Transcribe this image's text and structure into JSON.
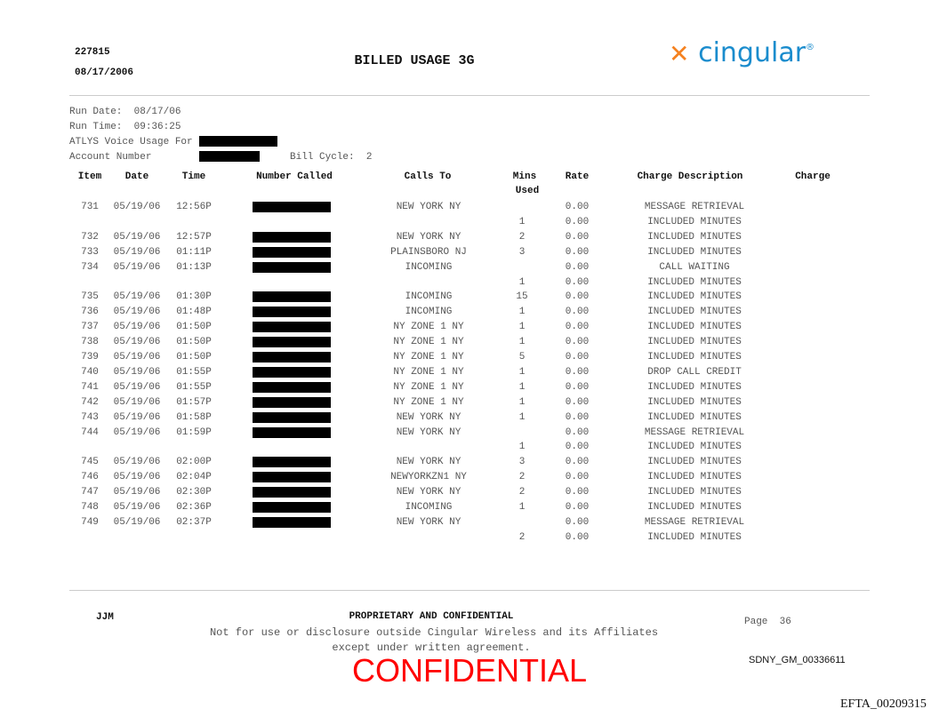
{
  "header": {
    "doc_id": "227815",
    "doc_date": "08/17/2006",
    "title": "BILLED USAGE 3G",
    "logo_text": "cingular",
    "logo_mark": "®",
    "brand_colors": {
      "blue": "#1a8ccd",
      "orange": "#f58220"
    }
  },
  "info": {
    "run_date_label": "Run Date:",
    "run_date": "08/17/06",
    "run_time_label": "Run Time:",
    "run_time": "09:36:25",
    "usage_for_label": "ATLYS Voice Usage For",
    "account_label": "Account Number",
    "bill_cycle_label": "Bill Cycle:",
    "bill_cycle": "2"
  },
  "table": {
    "columns": {
      "item": "Item",
      "date": "Date",
      "time": "Time",
      "number": "Number Called",
      "calls_to": "Calls To",
      "mins1": "Mins",
      "mins2": "Used",
      "rate": "Rate",
      "desc": "Charge Description",
      "charge": "Charge"
    },
    "rows": [
      {
        "item": "731",
        "date": "05/19/06",
        "time": "12:56P",
        "redacted": true,
        "calls_to": "NEW YORK NY",
        "mins": "",
        "rate": "0.00",
        "desc": "MESSAGE RETRIEVAL"
      },
      {
        "item": "",
        "date": "",
        "time": "",
        "redacted": false,
        "calls_to": "",
        "mins": "1",
        "rate": "0.00",
        "desc": "INCLUDED MINUTES"
      },
      {
        "item": "732",
        "date": "05/19/06",
        "time": "12:57P",
        "redacted": true,
        "calls_to": "NEW YORK NY",
        "mins": "2",
        "rate": "0.00",
        "desc": "INCLUDED MINUTES"
      },
      {
        "item": "733",
        "date": "05/19/06",
        "time": "01:11P",
        "redacted": true,
        "calls_to": "PLAINSBORO NJ",
        "mins": "3",
        "rate": "0.00",
        "desc": "INCLUDED MINUTES"
      },
      {
        "item": "734",
        "date": "05/19/06",
        "time": "01:13P",
        "redacted": true,
        "calls_to": "INCOMING",
        "mins": "",
        "rate": "0.00",
        "desc": "CALL WAITING"
      },
      {
        "item": "",
        "date": "",
        "time": "",
        "redacted": false,
        "calls_to": "",
        "mins": "1",
        "rate": "0.00",
        "desc": "INCLUDED MINUTES"
      },
      {
        "item": "735",
        "date": "05/19/06",
        "time": "01:30P",
        "redacted": true,
        "calls_to": "INCOMING",
        "mins": "15",
        "rate": "0.00",
        "desc": "INCLUDED MINUTES"
      },
      {
        "item": "736",
        "date": "05/19/06",
        "time": "01:48P",
        "redacted": true,
        "calls_to": "INCOMING",
        "mins": "1",
        "rate": "0.00",
        "desc": "INCLUDED MINUTES"
      },
      {
        "item": "737",
        "date": "05/19/06",
        "time": "01:50P",
        "redacted": true,
        "calls_to": "NY ZONE 1 NY",
        "mins": "1",
        "rate": "0.00",
        "desc": "INCLUDED MINUTES"
      },
      {
        "item": "738",
        "date": "05/19/06",
        "time": "01:50P",
        "redacted": true,
        "calls_to": "NY ZONE 1 NY",
        "mins": "1",
        "rate": "0.00",
        "desc": "INCLUDED MINUTES"
      },
      {
        "item": "739",
        "date": "05/19/06",
        "time": "01:50P",
        "redacted": true,
        "calls_to": "NY ZONE 1 NY",
        "mins": "5",
        "rate": "0.00",
        "desc": "INCLUDED MINUTES"
      },
      {
        "item": "740",
        "date": "05/19/06",
        "time": "01:55P",
        "redacted": true,
        "calls_to": "NY ZONE 1 NY",
        "mins": "1",
        "rate": "0.00",
        "desc": "DROP CALL CREDIT"
      },
      {
        "item": "741",
        "date": "05/19/06",
        "time": "01:55P",
        "redacted": true,
        "calls_to": "NY ZONE 1 NY",
        "mins": "1",
        "rate": "0.00",
        "desc": "INCLUDED MINUTES"
      },
      {
        "item": "742",
        "date": "05/19/06",
        "time": "01:57P",
        "redacted": true,
        "calls_to": "NY ZONE 1 NY",
        "mins": "1",
        "rate": "0.00",
        "desc": "INCLUDED MINUTES"
      },
      {
        "item": "743",
        "date": "05/19/06",
        "time": "01:58P",
        "redacted": true,
        "calls_to": "NEW YORK NY",
        "mins": "1",
        "rate": "0.00",
        "desc": "INCLUDED MINUTES"
      },
      {
        "item": "744",
        "date": "05/19/06",
        "time": "01:59P",
        "redacted": true,
        "calls_to": "NEW YORK NY",
        "mins": "",
        "rate": "0.00",
        "desc": "MESSAGE RETRIEVAL"
      },
      {
        "item": "",
        "date": "",
        "time": "",
        "redacted": false,
        "calls_to": "",
        "mins": "1",
        "rate": "0.00",
        "desc": "INCLUDED MINUTES"
      },
      {
        "item": "745",
        "date": "05/19/06",
        "time": "02:00P",
        "redacted": true,
        "calls_to": "NEW YORK NY",
        "mins": "3",
        "rate": "0.00",
        "desc": "INCLUDED MINUTES"
      },
      {
        "item": "746",
        "date": "05/19/06",
        "time": "02:04P",
        "redacted": true,
        "calls_to": "NEWYORKZN1 NY",
        "mins": "2",
        "rate": "0.00",
        "desc": "INCLUDED MINUTES"
      },
      {
        "item": "747",
        "date": "05/19/06",
        "time": "02:30P",
        "redacted": true,
        "calls_to": "NEW YORK NY",
        "mins": "2",
        "rate": "0.00",
        "desc": "INCLUDED MINUTES"
      },
      {
        "item": "748",
        "date": "05/19/06",
        "time": "02:36P",
        "redacted": true,
        "calls_to": "INCOMING",
        "mins": "1",
        "rate": "0.00",
        "desc": "INCLUDED MINUTES"
      },
      {
        "item": "749",
        "date": "05/19/06",
        "time": "02:37P",
        "redacted": true,
        "calls_to": "NEW YORK NY",
        "mins": "",
        "rate": "0.00",
        "desc": "MESSAGE RETRIEVAL"
      },
      {
        "item": "",
        "date": "",
        "time": "",
        "redacted": false,
        "calls_to": "",
        "mins": "2",
        "rate": "0.00",
        "desc": "INCLUDED MINUTES"
      }
    ]
  },
  "footer": {
    "initials": "JJM",
    "prop_title": "PROPRIETARY AND CONFIDENTIAL",
    "line1": "Not for use or disclosure outside Cingular Wireless and its Affiliates",
    "line2": "except under written agreement.",
    "page_label": "Page",
    "page_number": "36",
    "stamp": "CONFIDENTIAL",
    "stamp_color": "#ff0000",
    "bates": "SDNY_GM_00336611",
    "efta": "EFTA_00209315"
  }
}
